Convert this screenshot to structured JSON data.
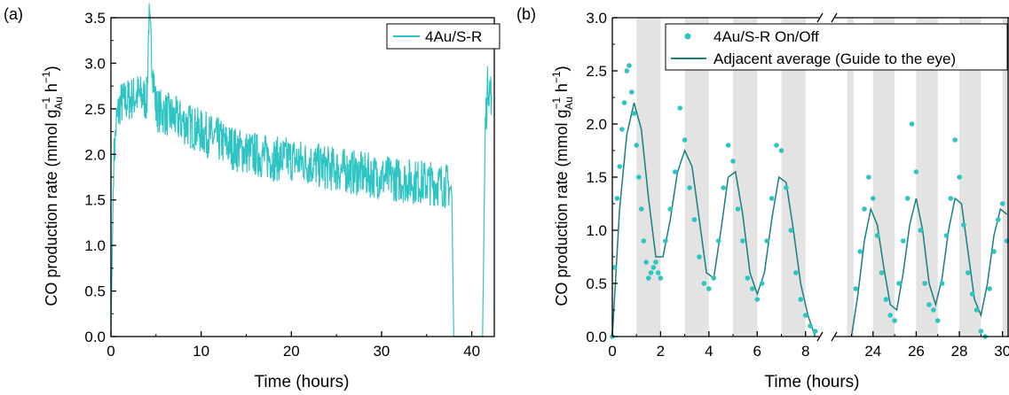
{
  "chart_data": [
    {
      "type": "line",
      "panel_label": "(a)",
      "xlabel": "Time (hours)",
      "ylabel_parts": [
        "CO production rate (mmol g",
        "−1",
        "Au",
        " h",
        "−1",
        ")"
      ],
      "xlim": [
        0,
        42.5
      ],
      "ylim": [
        0,
        3.5
      ],
      "xticks": [
        0,
        10,
        20,
        30,
        40
      ],
      "yticks": [
        0.0,
        0.5,
        1.0,
        1.5,
        2.0,
        2.5,
        3.0,
        3.5
      ],
      "ytick_labels": [
        "0.0",
        "0.5",
        "1.0",
        "1.5",
        "2.0",
        "2.5",
        "3.0",
        "3.5"
      ],
      "legend_position": "top-right",
      "series": [
        {
          "name": "4Au/S-R",
          "color": "#2ec4c4",
          "x": [
            0,
            0.3,
            0.6,
            1,
            2,
            3,
            4,
            4.2,
            5,
            6,
            8,
            10,
            12,
            14,
            16,
            18,
            20,
            22,
            24,
            26,
            28,
            30,
            32,
            34,
            36,
            37.5,
            37.8,
            38,
            41.2,
            41.5,
            41.8,
            42.2
          ],
          "y": [
            0,
            1.9,
            2.35,
            2.55,
            2.6,
            2.65,
            2.6,
            3.5,
            2.5,
            2.45,
            2.35,
            2.25,
            2.15,
            2.05,
            2.0,
            1.95,
            1.95,
            1.9,
            1.85,
            1.82,
            1.78,
            1.75,
            1.72,
            1.7,
            1.68,
            1.65,
            1.55,
            0.0,
            0.0,
            2.3,
            2.8,
            2.65
          ]
        }
      ]
    },
    {
      "type": "scatter",
      "panel_label": "(b)",
      "xlabel": "Time (hours)",
      "ylabel_parts": [
        "CO production rate (mmol g",
        "−1",
        "Au",
        " h",
        "−1",
        ")"
      ],
      "x_break": {
        "left": [
          0,
          8.6
        ],
        "right": [
          22.2,
          30.3
        ]
      },
      "xticks": [
        0,
        2,
        4,
        6,
        8,
        24,
        26,
        28,
        30
      ],
      "xtick_labels": [
        "0",
        "2",
        "4",
        "6",
        "8",
        "24",
        "26",
        "28",
        "30"
      ],
      "ylim": [
        0,
        3.0
      ],
      "yticks": [
        0.0,
        0.5,
        1.0,
        1.5,
        2.0,
        2.5,
        3.0
      ],
      "ytick_labels": [
        "0.0",
        "0.5",
        "1.0",
        "1.5",
        "2.0",
        "2.5",
        "3.0"
      ],
      "legend_position": "top-right",
      "shaded_intervals": [
        [
          1,
          2
        ],
        [
          3,
          4
        ],
        [
          5,
          6
        ],
        [
          7,
          8
        ],
        [
          22.8,
          23.1
        ],
        [
          24,
          25
        ],
        [
          26,
          27
        ],
        [
          28,
          29
        ],
        [
          30,
          30.3
        ]
      ],
      "series": [
        {
          "name": "4Au/S-R On/Off",
          "color": "#2ec4c4",
          "x": [
            0,
            0.1,
            0.2,
            0.3,
            0.4,
            0.5,
            0.6,
            0.7,
            0.8,
            0.9,
            1.0,
            1.1,
            1.2,
            1.3,
            1.4,
            1.5,
            1.6,
            1.7,
            1.8,
            1.9,
            2.0,
            2.2,
            2.4,
            2.6,
            2.8,
            3.0,
            3.2,
            3.4,
            3.6,
            3.8,
            4.0,
            4.2,
            4.4,
            4.6,
            4.8,
            5.0,
            5.2,
            5.4,
            5.6,
            5.8,
            6.0,
            6.2,
            6.4,
            6.6,
            6.8,
            7.0,
            7.2,
            7.4,
            7.6,
            7.8,
            8.0,
            8.2,
            8.4,
            23.2,
            23.4,
            23.6,
            23.8,
            24.0,
            24.2,
            24.4,
            24.6,
            24.8,
            25.0,
            25.2,
            25.4,
            25.6,
            25.8,
            26.0,
            26.2,
            26.4,
            26.6,
            26.8,
            27.0,
            27.2,
            27.4,
            27.6,
            27.8,
            28.0,
            28.2,
            28.4,
            28.6,
            28.8,
            29.0,
            29.2,
            29.4,
            29.6,
            29.8,
            30.0,
            30.2
          ],
          "y": [
            0.0,
            0.65,
            1.3,
            1.6,
            1.95,
            2.2,
            2.5,
            2.55,
            2.3,
            2.1,
            1.8,
            1.5,
            1.2,
            0.9,
            0.7,
            0.55,
            0.6,
            0.65,
            0.7,
            0.6,
            0.55,
            0.9,
            1.2,
            1.55,
            2.15,
            1.85,
            1.4,
            1.1,
            0.75,
            0.5,
            0.45,
            0.55,
            0.9,
            1.4,
            1.8,
            1.65,
            1.2,
            0.9,
            0.55,
            0.45,
            0.35,
            0.5,
            0.9,
            1.3,
            1.8,
            1.75,
            1.4,
            1.0,
            0.6,
            0.35,
            0.2,
            0.1,
            0.05,
            0.45,
            0.8,
            1.2,
            1.5,
            1.3,
            0.95,
            0.6,
            0.35,
            0.2,
            0.15,
            0.5,
            0.9,
            1.3,
            2.0,
            1.55,
            1.0,
            0.5,
            0.3,
            0.25,
            0.15,
            0.5,
            0.95,
            1.3,
            1.85,
            1.5,
            1.05,
            0.6,
            0.4,
            0.25,
            0.05,
            0.0,
            0.45,
            0.8,
            1.1,
            1.25,
            0.9
          ]
        },
        {
          "name": "Adjacent average (Guide to the eye)",
          "color": "#17807e",
          "x": [
            0,
            0.3,
            0.6,
            0.9,
            1.2,
            1.5,
            1.8,
            2.1,
            2.4,
            2.7,
            3.0,
            3.3,
            3.6,
            3.9,
            4.2,
            4.5,
            4.8,
            5.1,
            5.4,
            5.7,
            6.0,
            6.3,
            6.6,
            6.9,
            7.2,
            7.5,
            7.8,
            8.1,
            8.4,
            23.0,
            23.3,
            23.6,
            23.9,
            24.2,
            24.5,
            24.8,
            25.1,
            25.4,
            25.7,
            26.0,
            26.3,
            26.6,
            26.9,
            27.2,
            27.5,
            27.8,
            28.1,
            28.4,
            28.7,
            29.0,
            29.3,
            29.6,
            29.9,
            30.2
          ],
          "y": [
            0.0,
            1.2,
            1.9,
            2.2,
            1.95,
            1.3,
            0.75,
            0.75,
            1.1,
            1.55,
            1.75,
            1.6,
            1.1,
            0.6,
            0.55,
            1.0,
            1.5,
            1.55,
            1.15,
            0.6,
            0.4,
            0.6,
            1.1,
            1.5,
            1.45,
            1.0,
            0.5,
            0.2,
            0.0,
            0.0,
            0.4,
            0.9,
            1.2,
            1.05,
            0.65,
            0.3,
            0.25,
            0.6,
            1.05,
            1.3,
            1.0,
            0.5,
            0.3,
            0.55,
            1.0,
            1.3,
            1.25,
            0.8,
            0.35,
            0.2,
            0.5,
            0.95,
            1.2,
            1.15
          ]
        }
      ]
    }
  ]
}
